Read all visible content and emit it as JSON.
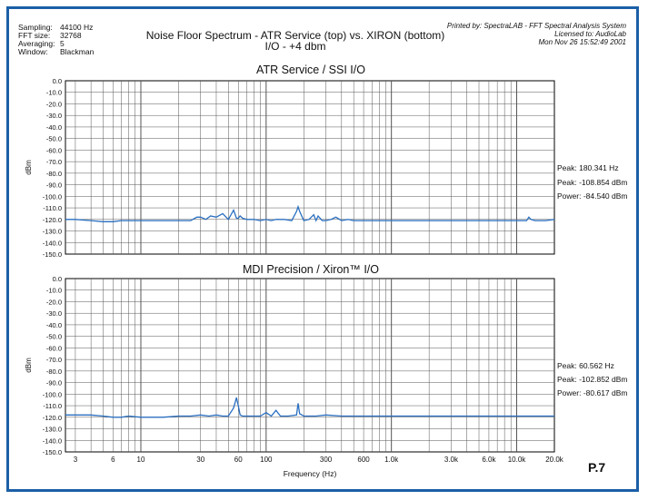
{
  "header": {
    "settings": [
      {
        "key": "Sampling:",
        "value": "44100 Hz"
      },
      {
        "key": "FFT size:",
        "value": "32768"
      },
      {
        "key": "Averaging:",
        "value": "5"
      },
      {
        "key": "Window:",
        "value": "Blackman"
      }
    ],
    "title_line1": "Noise Floor Spectrum - ATR Service (top) vs. XIRON (bottom)",
    "title_line2": "I/O - +4 dbm",
    "printed_by": "Printed by: SpectraLAB - FFT Spectral Analysis System",
    "licensed_to": "Licensed to: AudioLab",
    "date": "Mon Nov 26 15:52:49 2001"
  },
  "page_number": "P.7",
  "colors": {
    "frame": "#1b5fa6",
    "trace": "#2a6fc0",
    "grid": "#000000"
  },
  "chart_data": [
    {
      "type": "line",
      "title": "ATR Service / SSI I/O",
      "ylabel": "dBm",
      "xlabel": "",
      "x_scale": "log",
      "xlim": [
        2.5,
        20000
      ],
      "ylim": [
        -150,
        0
      ],
      "yticks": [
        "0.0",
        "-10.0",
        "-20.0",
        "-30.0",
        "-40.0",
        "-50.0",
        "-60.0",
        "-70.0",
        "-80.0",
        "-90.0",
        "-100.0",
        "-110.0",
        "-120.0",
        "-130.0",
        "-140.0",
        "-150.0"
      ],
      "grid": true,
      "stats": [
        "Peak: 180.341 Hz",
        "Peak: -108.854 dBm",
        "Power: -84.540 dBm"
      ],
      "series": [
        {
          "x": [
            2.5,
            3,
            4,
            5,
            6,
            7,
            8,
            10,
            12,
            15,
            20,
            25,
            28,
            30,
            33,
            36,
            40,
            45,
            50,
            55,
            58,
            60,
            62,
            65,
            70,
            80,
            90,
            100,
            110,
            120,
            140,
            160,
            175,
            180,
            185,
            200,
            220,
            240,
            250,
            260,
            280,
            300,
            330,
            360,
            400,
            450,
            500,
            600,
            700,
            800,
            900,
            1000,
            1200,
            1500,
            2000,
            2500,
            3000,
            4000,
            5000,
            6000,
            8000,
            10000,
            12000,
            12500,
            13000,
            14000,
            15000,
            17000,
            20000
          ],
          "y": [
            -120,
            -120,
            -121,
            -122,
            -122,
            -121,
            -121,
            -121,
            -121,
            -121,
            -121,
            -121,
            -118,
            -118,
            -120,
            -117,
            -118,
            -115,
            -120,
            -112,
            -119,
            -119,
            -117,
            -119,
            -120,
            -120,
            -121,
            -120,
            -121,
            -120,
            -120,
            -121,
            -113,
            -109,
            -113,
            -121,
            -120,
            -116,
            -121,
            -117,
            -121,
            -121,
            -120,
            -118,
            -121,
            -120,
            -121,
            -121,
            -121,
            -121,
            -121,
            -121,
            -121,
            -121,
            -121,
            -121,
            -121,
            -121,
            -121,
            -121,
            -121,
            -121,
            -121,
            -118,
            -120,
            -121,
            -121,
            -121,
            -120
          ]
        }
      ]
    },
    {
      "type": "line",
      "title": "MDI Precision / Xiron™ I/O",
      "ylabel": "dBm",
      "xlabel": "Frequency (Hz)",
      "x_scale": "log",
      "xlim": [
        2.5,
        20000
      ],
      "ylim": [
        -150,
        0
      ],
      "yticks": [
        "0.0",
        "-10.0",
        "-20.0",
        "-30.0",
        "-40.0",
        "-50.0",
        "-60.0",
        "-70.0",
        "-80.0",
        "-90.0",
        "-100.0",
        "-110.0",
        "-120.0",
        "-130.0",
        "-140.0",
        "-150.0"
      ],
      "xticks": [
        "3",
        "6",
        "10",
        "30",
        "60",
        "100",
        "300",
        "600",
        "1.0k",
        "3.0k",
        "6.0k",
        "10.0k",
        "20.0k"
      ],
      "grid": true,
      "stats": [
        "Peak: 60.562 Hz",
        "Peak: -102.852 dBm",
        "Power: -80.617 dBm"
      ],
      "series": [
        {
          "x": [
            2.5,
            3,
            4,
            5,
            6,
            7,
            8,
            10,
            12,
            15,
            20,
            25,
            30,
            35,
            40,
            45,
            50,
            55,
            58,
            60,
            62,
            65,
            70,
            80,
            90,
            100,
            110,
            120,
            130,
            150,
            175,
            180,
            185,
            200,
            250,
            300,
            400,
            500,
            600,
            800,
            1000,
            1500,
            2000,
            3000,
            5000,
            7000,
            10000,
            15000,
            20000
          ],
          "y": [
            -118,
            -118,
            -118,
            -119,
            -120,
            -120,
            -119,
            -120,
            -120,
            -120,
            -119,
            -119,
            -118,
            -119,
            -118,
            -119,
            -119,
            -112,
            -103,
            -110,
            -118,
            -119,
            -119,
            -119,
            -119,
            -116,
            -119,
            -114,
            -119,
            -119,
            -118,
            -108,
            -117,
            -119,
            -119,
            -118,
            -119,
            -119,
            -119,
            -119,
            -119,
            -119,
            -119,
            -119,
            -119,
            -119,
            -119,
            -119,
            -119
          ]
        }
      ]
    }
  ]
}
